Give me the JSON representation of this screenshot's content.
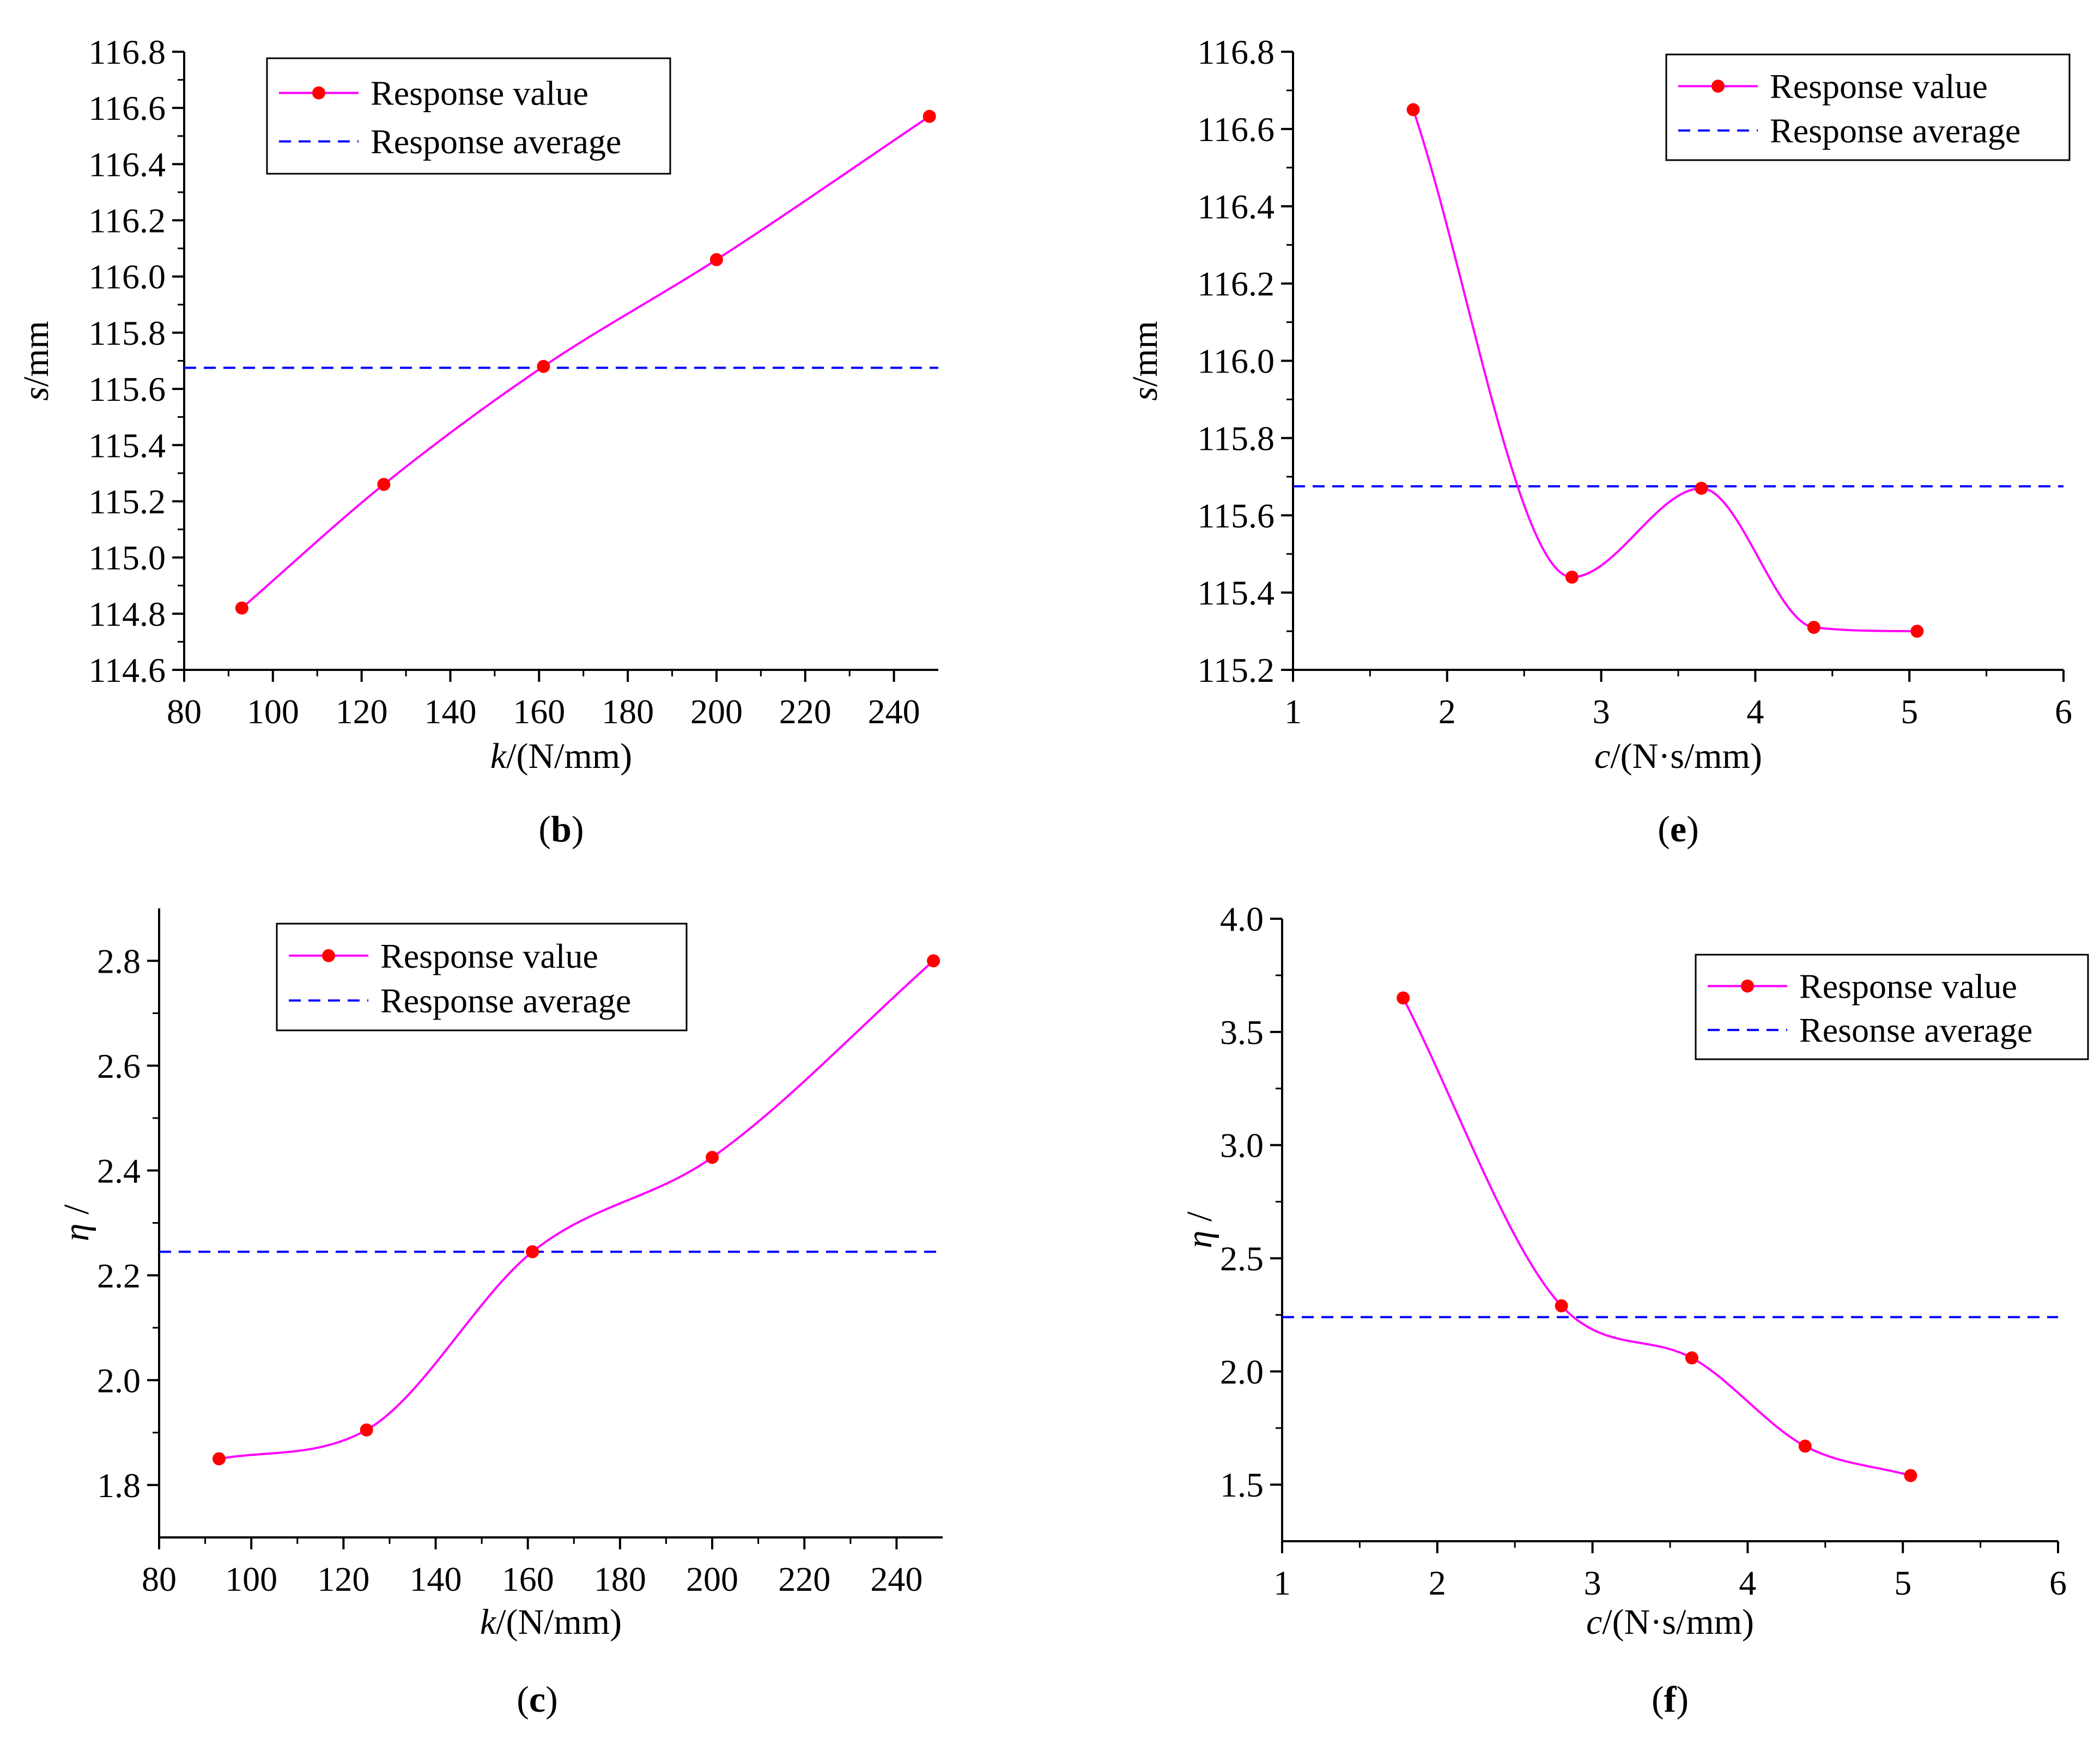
{
  "figure": {
    "colors": {
      "response": "#ff00ff",
      "marker": "#ff0000",
      "average": "#0000ff",
      "axis": "#000000"
    }
  },
  "chart_data": [
    {
      "id": "b",
      "type": "line",
      "panel_label": "b",
      "xlabel_var": "k",
      "xlabel_unit": "/(N/mm)",
      "ylabel_var": "s",
      "ylabel_unit": "/mm",
      "xlim": [
        80,
        250
      ],
      "xticks": [
        80,
        100,
        120,
        140,
        160,
        180,
        200,
        220,
        240
      ],
      "xtick_labels": [
        "80",
        "100",
        "120",
        "140",
        "160",
        "180",
        "200",
        "220",
        "240"
      ],
      "ylim": [
        114.6,
        116.8
      ],
      "yticks": [
        114.6,
        114.8,
        115.0,
        115.2,
        115.4,
        115.6,
        115.8,
        116.0,
        116.2,
        116.4,
        116.6,
        116.8
      ],
      "ytick_labels": [
        "114.6",
        "114.8",
        "115.0",
        "115.2",
        "115.4",
        "115.6",
        "115.8",
        "116.0",
        "116.2",
        "116.4",
        "116.6",
        "116.8"
      ],
      "series": [
        {
          "name": "Response value",
          "x": [
            93,
            125,
            161,
            200,
            248
          ],
          "y": [
            114.82,
            115.26,
            115.68,
            116.06,
            116.57
          ]
        }
      ],
      "average": {
        "name": "Response average",
        "value": 115.675
      },
      "legend_position": "top-center"
    },
    {
      "id": "e",
      "type": "line",
      "panel_label": "e",
      "xlabel_var": "c",
      "xlabel_unit": "/(N·s/mm)",
      "ylabel_var": "s",
      "ylabel_unit": "/mm",
      "xlim": [
        1,
        6
      ],
      "xticks": [
        1,
        2,
        3,
        4,
        5,
        6
      ],
      "xtick_labels": [
        "1",
        "2",
        "3",
        "4",
        "5",
        "6"
      ],
      "ylim": [
        115.2,
        116.8
      ],
      "yticks": [
        115.2,
        115.4,
        115.6,
        115.8,
        116.0,
        116.2,
        116.4,
        116.6,
        116.8
      ],
      "ytick_labels": [
        "115.2",
        "115.4",
        "115.6",
        "115.8",
        "116.0",
        "116.2",
        "116.4",
        "116.6",
        "116.8"
      ],
      "series": [
        {
          "name": "Response value",
          "x": [
            1.78,
            2.81,
            3.65,
            4.38,
            5.05
          ],
          "y": [
            116.65,
            115.44,
            115.67,
            115.31,
            115.3
          ]
        }
      ],
      "average": {
        "name": "Response average",
        "value": 115.675
      },
      "legend_position": "top-right"
    },
    {
      "id": "c",
      "type": "line",
      "panel_label": "c",
      "xlabel_var": "k",
      "xlabel_unit": "/(N/mm)",
      "ylabel_var": "η",
      "ylabel_unit": " /",
      "xlim": [
        80,
        250
      ],
      "xticks": [
        80,
        100,
        120,
        140,
        160,
        180,
        200,
        220,
        240
      ],
      "xtick_labels": [
        "80",
        "100",
        "120",
        "140",
        "160",
        "180",
        "200",
        "220",
        "240"
      ],
      "ylim": [
        1.7,
        2.9
      ],
      "yticks": [
        1.8,
        2.0,
        2.2,
        2.4,
        2.6,
        2.8
      ],
      "ytick_labels": [
        "1.8",
        "2.0",
        "2.2",
        "2.4",
        "2.6",
        "2.8"
      ],
      "series": [
        {
          "name": "Response value",
          "x": [
            93,
            125,
            161,
            200,
            248
          ],
          "y": [
            1.85,
            1.905,
            2.245,
            2.425,
            2.8
          ]
        }
      ],
      "average": {
        "name": "Response average",
        "value": 2.245
      },
      "legend_position": "top-center"
    },
    {
      "id": "f",
      "type": "line",
      "panel_label": "f",
      "xlabel_var": "c",
      "xlabel_unit": "/(N·s/mm)",
      "ylabel_var": "η",
      "ylabel_unit": " /",
      "xlim": [
        1,
        6
      ],
      "xticks": [
        1,
        2,
        3,
        4,
        5,
        6
      ],
      "xtick_labels": [
        "1",
        "2",
        "3",
        "4",
        "5",
        "6"
      ],
      "ylim": [
        1.25,
        4.0
      ],
      "yticks": [
        1.5,
        2.0,
        2.5,
        3.0,
        3.5,
        4.0
      ],
      "ytick_labels": [
        "1.5",
        "2.0",
        "2.5",
        "3.0",
        "3.5",
        "4.0"
      ],
      "series": [
        {
          "name": "Response value",
          "x": [
            1.78,
            2.8,
            3.64,
            4.37,
            5.05
          ],
          "y": [
            3.65,
            2.29,
            2.06,
            1.67,
            1.54
          ]
        }
      ],
      "average": {
        "name": "Resonse average",
        "value": 2.24
      },
      "legend_position": "top-right"
    }
  ]
}
